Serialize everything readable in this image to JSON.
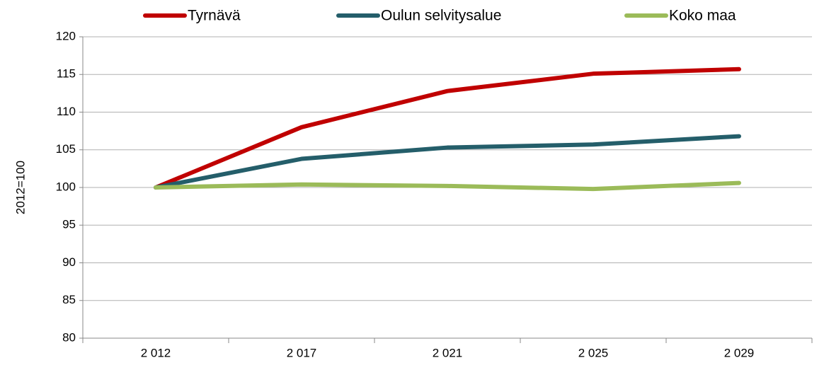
{
  "chart_data": {
    "type": "line",
    "y_label": "2012=100",
    "categories": [
      "2 012",
      "2 017",
      "2 021",
      "2 025",
      "2 029"
    ],
    "series": [
      {
        "name": "Tyrnävä",
        "color": "#c00000",
        "values": [
          100,
          108,
          112.8,
          115.1,
          115.7
        ]
      },
      {
        "name": "Oulun selvitysalue",
        "color": "#245e6a",
        "values": [
          100,
          103.8,
          105.3,
          105.7,
          106.8
        ]
      },
      {
        "name": "Koko maa",
        "color": "#9bbb59",
        "values": [
          100,
          100.4,
          100.2,
          99.8,
          100.6
        ]
      }
    ],
    "ylim": [
      80,
      120
    ],
    "yticks": [
      80,
      85,
      90,
      95,
      100,
      105,
      110,
      115,
      120
    ],
    "grid": true,
    "legend": "top"
  }
}
